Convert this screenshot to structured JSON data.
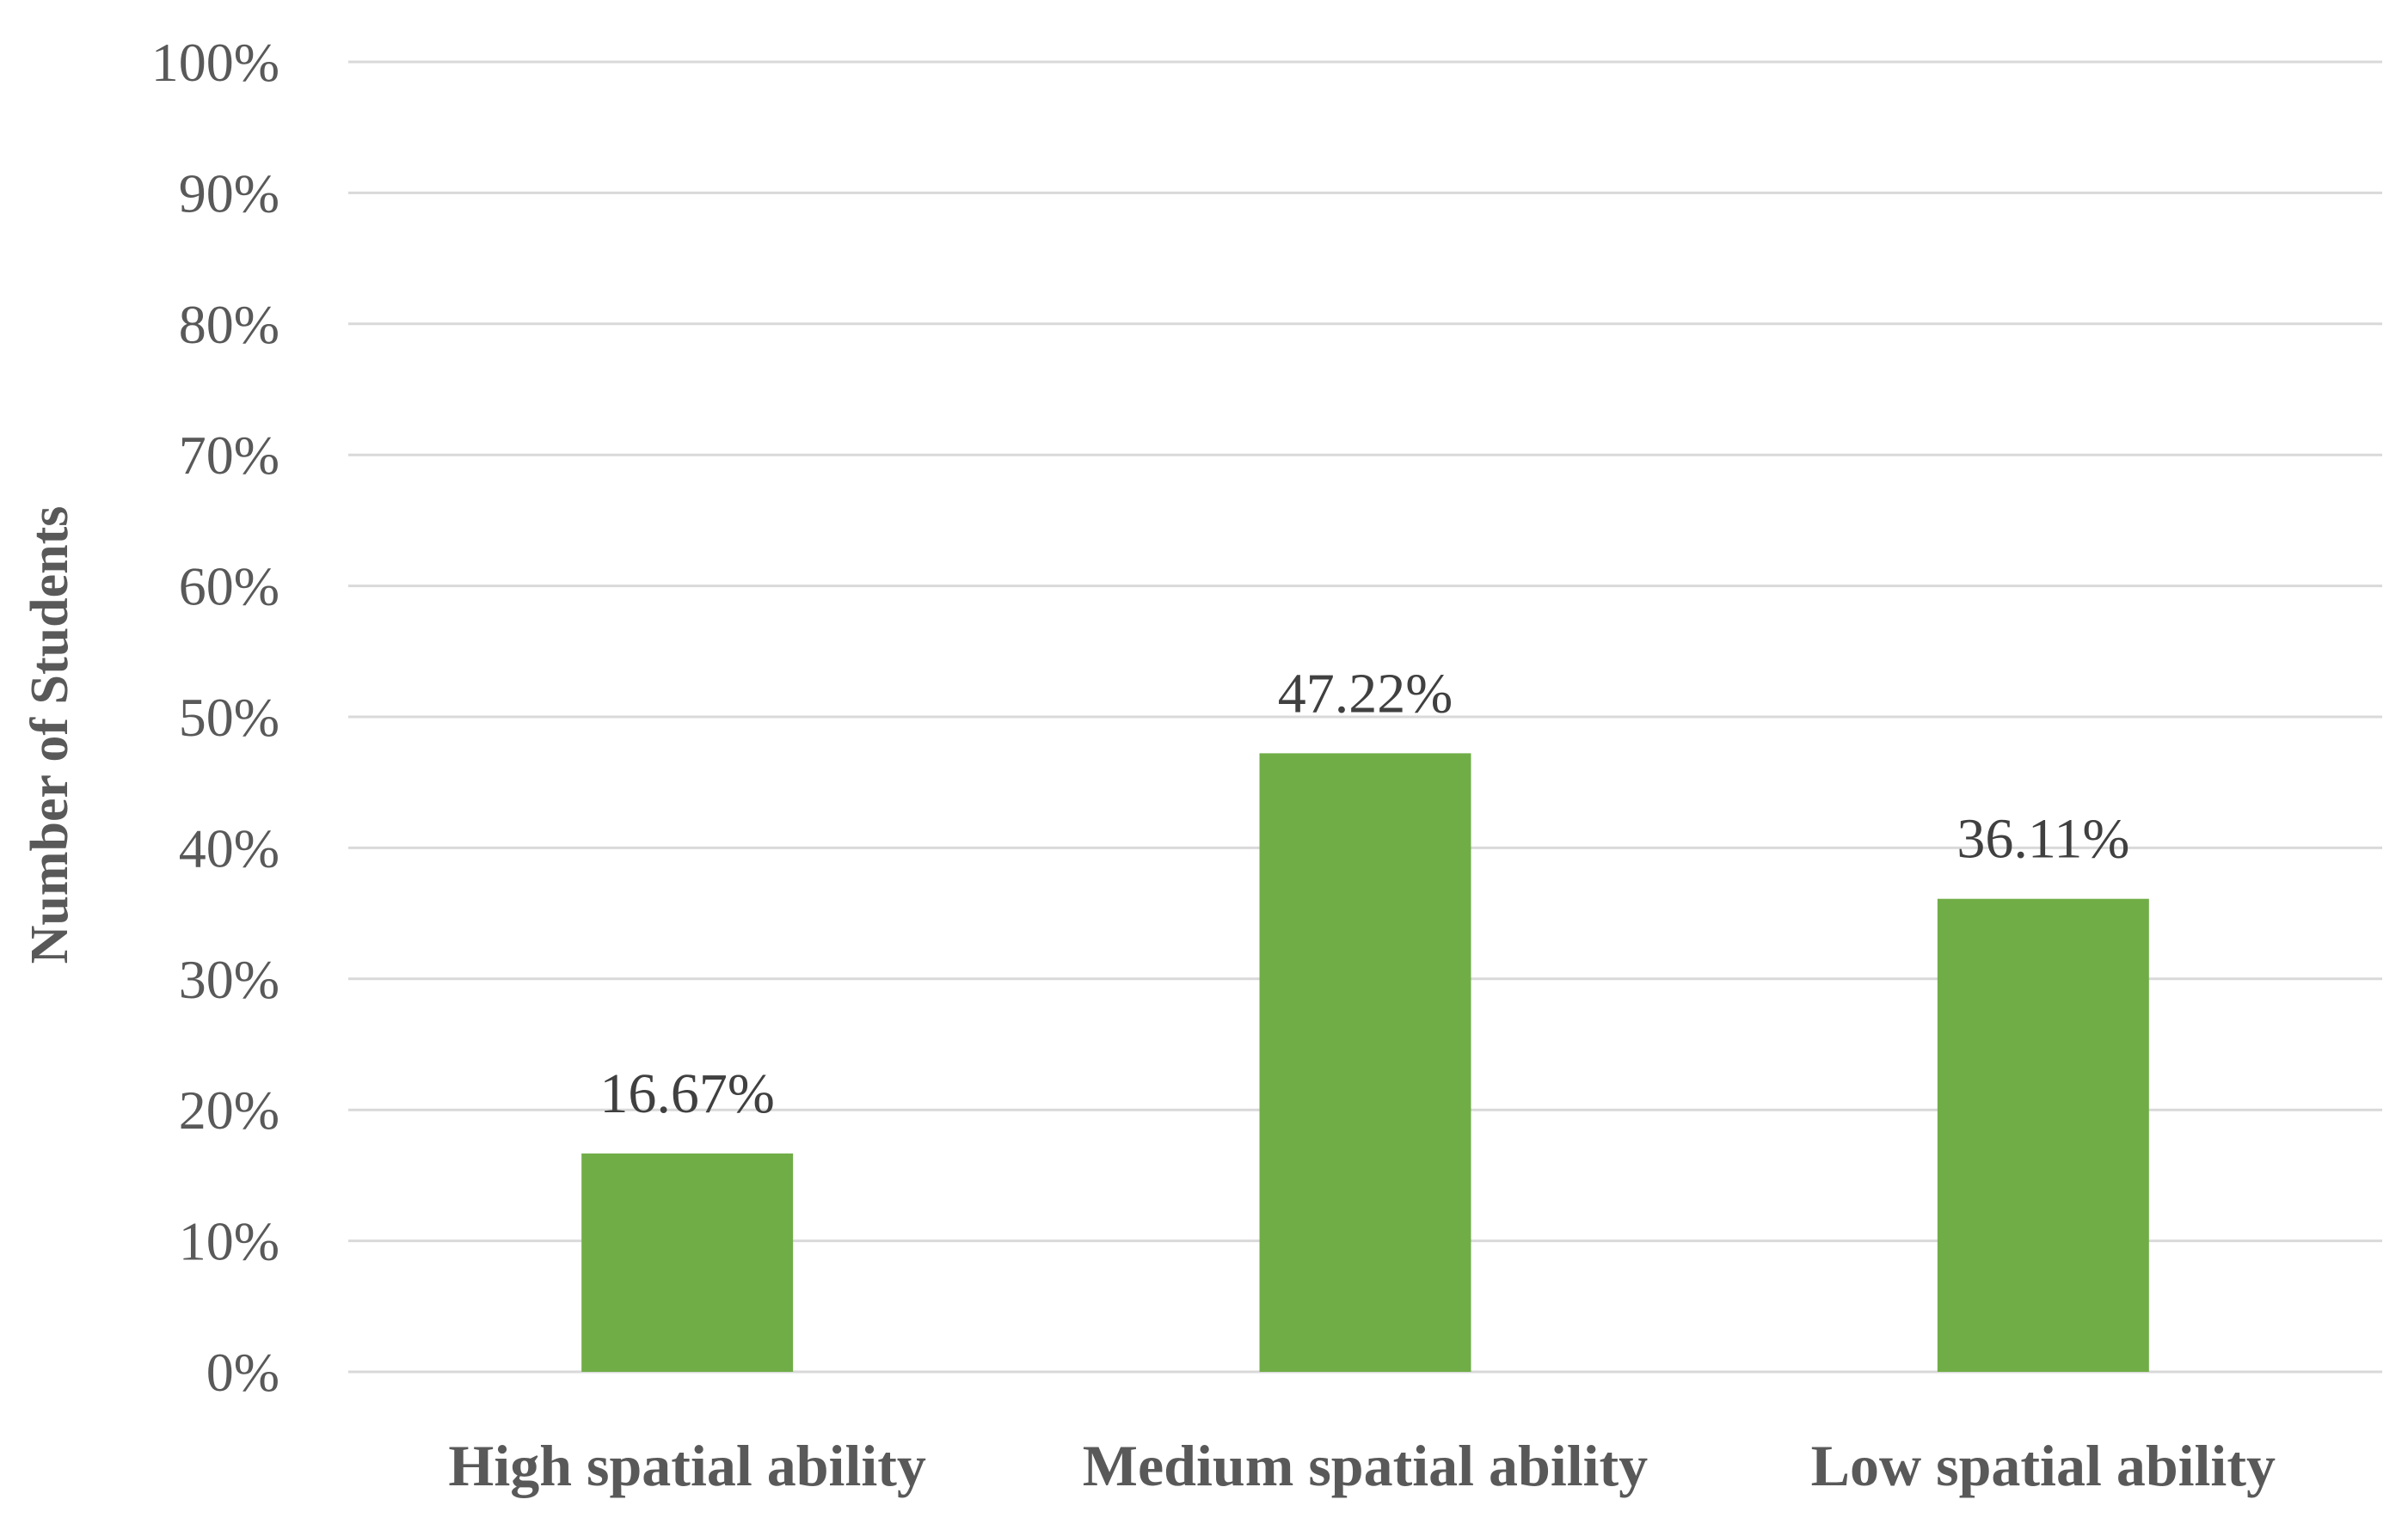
{
  "chart_data": {
    "type": "bar",
    "title": "",
    "xlabel": "",
    "ylabel": "Number of Students",
    "categories": [
      "High spatial ability",
      "Medium spatial ability",
      "Low spatial ability"
    ],
    "values": [
      16.67,
      47.22,
      36.11
    ],
    "data_labels": [
      "16.67%",
      "47.22%",
      "36.11%"
    ],
    "ylim": [
      0,
      100
    ],
    "yticks": [
      0,
      10,
      20,
      30,
      40,
      50,
      60,
      70,
      80,
      90,
      100
    ],
    "ytick_labels": [
      "0%",
      "10%",
      "20%",
      "30%",
      "40%",
      "50%",
      "60%",
      "70%",
      "80%",
      "90%",
      "100%"
    ],
    "grid": true,
    "legend": "none",
    "bar_color": "#70ad47"
  }
}
